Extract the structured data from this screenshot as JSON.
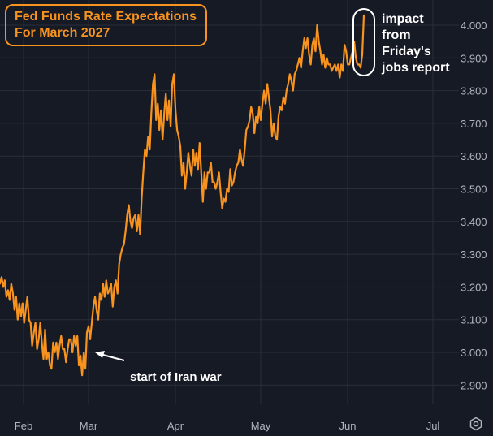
{
  "chart_data": {
    "type": "line",
    "title": "Fed Funds Rate Expectations",
    "subtitle": "For March 2027",
    "colors": {
      "background": "#161a25",
      "line": "#f7931e",
      "grid": "#2a2e39",
      "axis_text": "#b2b5be",
      "annotation": "#ffffff"
    },
    "y_ticks": [
      "2.900",
      "3.000",
      "3.100",
      "3.200",
      "3.300",
      "3.400",
      "3.500",
      "3.600",
      "3.700",
      "3.800",
      "3.900",
      "4.000"
    ],
    "x_ticks": [
      "Feb",
      "Mar",
      "Apr",
      "May",
      "Jun",
      "Jul"
    ],
    "ylim": [
      2.87,
      4.06
    ],
    "series": [
      {
        "values": [
          3.21,
          3.23,
          3.2,
          3.22,
          3.17,
          3.19,
          3.16,
          3.21,
          3.18,
          3.13,
          3.17,
          3.1,
          3.15,
          3.11,
          3.15,
          3.09,
          3.13,
          3.17,
          3.1,
          3.09,
          3.02,
          3.06,
          3.09,
          3.01,
          3.04,
          3.09,
          3.03,
          2.98,
          3.07,
          2.98,
          3.0,
          2.96,
          2.95,
          3.03,
          3.0,
          3.03,
          2.98,
          3.02,
          3.05,
          3.01,
          3.01,
          2.97,
          3.01,
          3.04,
          3.04,
          3.0,
          3.05,
          3.02,
          3.05,
          2.96,
          2.99,
          2.93,
          3.0,
          2.95,
          3.06,
          3.08,
          3.04,
          3.09,
          3.14,
          3.17,
          3.13,
          3.1,
          3.18,
          3.16,
          3.21,
          3.17,
          3.22,
          3.18,
          3.19,
          3.21,
          3.14,
          3.2,
          3.22,
          3.18,
          3.27,
          3.3,
          3.32,
          3.33,
          3.37,
          3.42,
          3.45,
          3.4,
          3.38,
          3.41,
          3.42,
          3.37,
          3.42,
          3.36,
          3.47,
          3.55,
          3.62,
          3.6,
          3.66,
          3.62,
          3.73,
          3.82,
          3.85,
          3.71,
          3.76,
          3.68,
          3.74,
          3.65,
          3.73,
          3.79,
          3.71,
          3.77,
          3.69,
          3.82,
          3.85,
          3.74,
          3.68,
          3.66,
          3.63,
          3.54,
          3.58,
          3.5,
          3.55,
          3.61,
          3.57,
          3.54,
          3.62,
          3.57,
          3.61,
          3.56,
          3.64,
          3.55,
          3.46,
          3.55,
          3.5,
          3.55,
          3.55,
          3.58,
          3.52,
          3.52,
          3.5,
          3.52,
          3.55,
          3.49,
          3.44,
          3.47,
          3.46,
          3.5,
          3.49,
          3.56,
          3.51,
          3.52,
          3.55,
          3.57,
          3.58,
          3.62,
          3.59,
          3.57,
          3.62,
          3.68,
          3.69,
          3.71,
          3.75,
          3.73,
          3.67,
          3.72,
          3.7,
          3.75,
          3.71,
          3.76,
          3.8,
          3.76,
          3.82,
          3.78,
          3.74,
          3.66,
          3.7,
          3.66,
          3.65,
          3.72,
          3.75,
          3.74,
          3.78,
          3.76,
          3.8,
          3.82,
          3.85,
          3.83,
          3.8,
          3.85,
          3.86,
          3.88,
          3.9,
          3.87,
          3.92,
          3.96,
          3.93,
          3.96,
          3.91,
          3.88,
          3.94,
          3.96,
          3.92,
          4.0,
          3.95,
          3.92,
          3.88,
          3.91,
          3.87,
          3.9,
          3.88,
          3.88,
          3.86,
          3.87,
          3.88,
          3.86,
          3.88,
          3.84,
          3.88,
          3.86,
          3.94,
          3.92,
          3.88,
          3.88,
          3.9,
          3.92,
          3.95,
          3.9,
          3.88,
          3.88,
          3.87,
          3.91,
          4.03
        ]
      }
    ],
    "annotations": {
      "start_war": "start of Iran war",
      "impact": [
        "impact",
        "from",
        "Friday's",
        "jobs report"
      ]
    },
    "grid": true,
    "legend": "none"
  }
}
